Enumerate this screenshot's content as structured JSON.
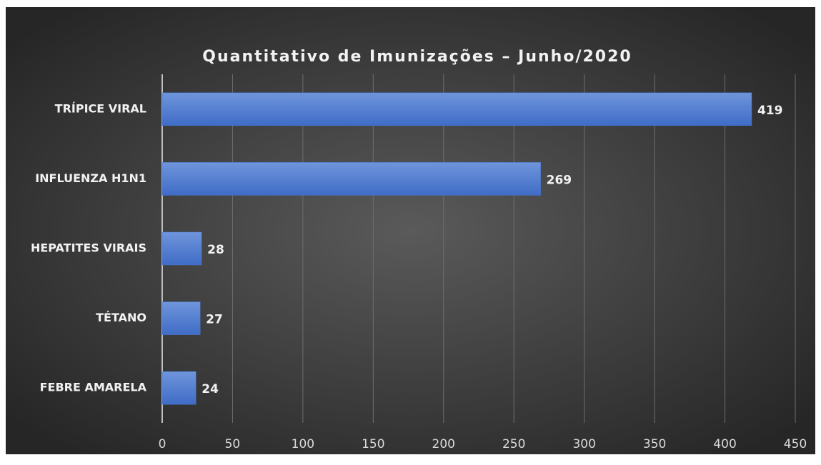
{
  "chart_data": {
    "type": "bar",
    "orientation": "horizontal",
    "title": "Quantitativo de Imunizações – Junho/2020",
    "categories": [
      "TRÍPICE VIRAL",
      "INFLUENZA H1N1",
      "HEPATITES VIRAIS",
      "TÉTANO",
      "FEBRE AMARELA"
    ],
    "values": [
      419,
      269,
      28,
      27,
      24
    ],
    "color": "#4a78d0",
    "xlim": [
      0,
      450
    ],
    "xticks": [
      0,
      50,
      100,
      150,
      200,
      250,
      300,
      350,
      400,
      450
    ],
    "grid": true
  }
}
